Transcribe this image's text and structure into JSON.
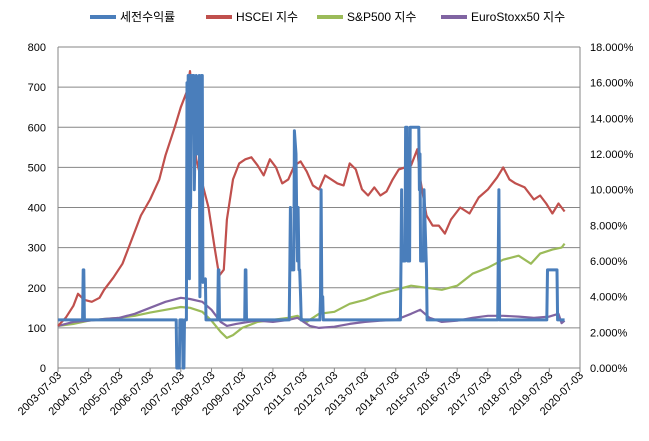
{
  "chart_data": {
    "type": "line",
    "legend_position": "top",
    "grid": "horizontal",
    "x_ticks": [
      "2003-07-03",
      "2004-07-03",
      "2005-07-03",
      "2006-07-03",
      "2007-07-03",
      "2008-07-03",
      "2009-07-03",
      "2010-07-03",
      "2011-07-03",
      "2012-07-03",
      "2013-07-03",
      "2014-07-03",
      "2015-07-03",
      "2016-07-03",
      "2017-07-03",
      "2018-07-03",
      "2019-07-03",
      "2020-07-03"
    ],
    "y_left": {
      "min": 0,
      "max": 800,
      "ticks": [
        "0",
        "100",
        "200",
        "300",
        "400",
        "500",
        "600",
        "700",
        "800"
      ]
    },
    "y_right": {
      "min": 0,
      "max": 0.18,
      "ticks": [
        "0.000%",
        "2.000%",
        "4.000%",
        "6.000%",
        "8.000%",
        "10.000%",
        "12.000%",
        "14.000%",
        "16.000%",
        "18.000%"
      ]
    },
    "series": [
      {
        "name": "세전수익률",
        "color": "#4a7ebb",
        "axis": "right",
        "x": [
          2003.5,
          2004.3,
          2004.32,
          2004.34,
          2004.36,
          2007.35,
          2007.37,
          2007.45,
          2007.47,
          2007.55,
          2007.57,
          2007.6,
          2007.62,
          2007.68,
          2007.7,
          2007.72,
          2007.74,
          2007.78,
          2007.8,
          2007.82,
          2007.84,
          2007.86,
          2007.88,
          2007.92,
          2007.94,
          2008.0,
          2008.02,
          2008.1,
          2008.12,
          2008.15,
          2008.17,
          2008.2,
          2008.22,
          2008.3,
          2008.32,
          2008.7,
          2008.72,
          2008.74,
          2008.76,
          2009.58,
          2009.6,
          2009.62,
          2009.64,
          2011.03,
          2011.05,
          2011.07,
          2011.09,
          2011.18,
          2011.2,
          2011.25,
          2011.27,
          2011.3,
          2011.32,
          2011.35,
          2011.37,
          2011.4,
          2011.42,
          2012.03,
          2012.05,
          2012.07,
          2012.09,
          2012.12,
          2012.14,
          2014.65,
          2014.67,
          2014.69,
          2014.71,
          2014.8,
          2014.82,
          2014.87,
          2014.89,
          2014.95,
          2014.97,
          2015.1,
          2015.12,
          2015.25,
          2015.27,
          2015.29,
          2015.31,
          2015.4,
          2015.42,
          2015.5,
          2015.52,
          2017.82,
          2017.84,
          2017.86,
          2017.88,
          2019.42,
          2019.44,
          2019.46,
          2019.48,
          2019.7,
          2019.72,
          2019.75,
          2019.77,
          2020.0
        ],
        "y": [
          0.027,
          0.027,
          0.055,
          0.055,
          0.027,
          0.027,
          0,
          0,
          0.027,
          0.027,
          0,
          0,
          0.027,
          0.027,
          0.16,
          0.13,
          0.164,
          0.05,
          0.164,
          0.09,
          0.164,
          0.14,
          0.164,
          0.164,
          0.1,
          0.164,
          0.12,
          0.164,
          0.04,
          0.08,
          0.164,
          0.164,
          0.048,
          0.05,
          0.027,
          0.027,
          0.055,
          0.055,
          0.027,
          0.027,
          0.055,
          0.055,
          0.027,
          0.027,
          0.055,
          0.09,
          0.055,
          0.055,
          0.133,
          0.12,
          0.09,
          0.06,
          0.09,
          0.055,
          0.055,
          0.04,
          0.027,
          0.027,
          0.04,
          0.1,
          0.04,
          0.04,
          0.027,
          0.027,
          0.06,
          0.1,
          0.06,
          0.06,
          0.135,
          0.135,
          0.06,
          0.06,
          0.135,
          0.135,
          0.135,
          0.135,
          0.1,
          0.12,
          0.06,
          0.06,
          0.1,
          0.055,
          0.027,
          0.027,
          0.065,
          0.1,
          0.027,
          0.027,
          0.055,
          0.055,
          0.055,
          0.055,
          0.055,
          0.055,
          0.027,
          0.027
        ]
      },
      {
        "name": "HSCEI 지수",
        "color": "#c0504d",
        "axis": "left",
        "x": [
          2003.5,
          2003.75,
          2004.0,
          2004.15,
          2004.35,
          2004.6,
          2004.85,
          2005.0,
          2005.3,
          2005.6,
          2005.9,
          2006.2,
          2006.5,
          2006.8,
          2007.0,
          2007.3,
          2007.5,
          2007.7,
          2007.8,
          2007.85,
          2007.9,
          2008.0,
          2008.2,
          2008.4,
          2008.6,
          2008.75,
          2008.9,
          2009.0,
          2009.2,
          2009.4,
          2009.6,
          2009.8,
          2010.0,
          2010.2,
          2010.4,
          2010.6,
          2010.8,
          2011.0,
          2011.2,
          2011.4,
          2011.6,
          2011.8,
          2012.0,
          2012.2,
          2012.4,
          2012.6,
          2012.8,
          2013.0,
          2013.2,
          2013.4,
          2013.6,
          2013.8,
          2014.0,
          2014.2,
          2014.4,
          2014.6,
          2014.8,
          2015.0,
          2015.2,
          2015.3,
          2015.5,
          2015.7,
          2015.9,
          2016.1,
          2016.3,
          2016.6,
          2016.9,
          2017.2,
          2017.5,
          2017.8,
          2018.0,
          2018.2,
          2018.4,
          2018.7,
          2019.0,
          2019.2,
          2019.4,
          2019.6,
          2019.8,
          2020.0
        ],
        "y": [
          105,
          125,
          155,
          185,
          170,
          165,
          175,
          195,
          225,
          260,
          320,
          380,
          420,
          470,
          530,
          600,
          650,
          690,
          740,
          700,
          610,
          520,
          460,
          400,
          300,
          230,
          245,
          370,
          470,
          510,
          520,
          525,
          505,
          480,
          520,
          500,
          460,
          470,
          505,
          515,
          490,
          455,
          445,
          480,
          470,
          460,
          455,
          510,
          495,
          445,
          430,
          450,
          430,
          440,
          470,
          495,
          500,
          505,
          545,
          470,
          380,
          355,
          355,
          335,
          370,
          400,
          385,
          425,
          445,
          475,
          500,
          470,
          460,
          450,
          420,
          430,
          410,
          385,
          410,
          390
        ]
      },
      {
        "name": "S&P500 지수",
        "color": "#9bbb59",
        "axis": "left",
        "x": [
          2003.5,
          2004.0,
          2004.5,
          2005.0,
          2005.5,
          2006.0,
          2006.5,
          2007.0,
          2007.5,
          2007.8,
          2008.2,
          2008.5,
          2008.8,
          2009.0,
          2009.2,
          2009.5,
          2010.0,
          2010.5,
          2011.0,
          2011.3,
          2011.6,
          2012.0,
          2012.5,
          2013.0,
          2013.5,
          2014.0,
          2014.5,
          2015.0,
          2015.5,
          2016.0,
          2016.5,
          2017.0,
          2017.5,
          2018.0,
          2018.5,
          2018.9,
          2019.2,
          2019.6,
          2019.9,
          2020.0
        ],
        "y": [
          105,
          110,
          118,
          122,
          125,
          130,
          138,
          145,
          152,
          150,
          140,
          118,
          90,
          75,
          82,
          100,
          115,
          120,
          125,
          130,
          115,
          135,
          140,
          160,
          170,
          185,
          195,
          205,
          200,
          195,
          205,
          235,
          250,
          270,
          280,
          260,
          285,
          295,
          300,
          310
        ]
      },
      {
        "name": "EuroStoxx50 지수",
        "color": "#8064a2",
        "axis": "left",
        "x": [
          2003.5,
          2004.0,
          2004.5,
          2005.0,
          2005.5,
          2006.0,
          2006.5,
          2007.0,
          2007.5,
          2007.8,
          2008.2,
          2008.5,
          2008.8,
          2009.0,
          2009.3,
          2009.7,
          2010.0,
          2010.5,
          2011.0,
          2011.3,
          2011.7,
          2012.0,
          2012.5,
          2013.0,
          2013.5,
          2014.0,
          2014.5,
          2015.0,
          2015.3,
          2015.6,
          2016.0,
          2016.5,
          2017.0,
          2017.5,
          2018.0,
          2018.5,
          2019.0,
          2019.5,
          2019.8,
          2019.9,
          2020.0
        ],
        "y": [
          105,
          115,
          118,
          122,
          125,
          135,
          150,
          165,
          175,
          172,
          165,
          145,
          115,
          105,
          110,
          115,
          118,
          115,
          120,
          125,
          105,
          100,
          103,
          110,
          115,
          118,
          120,
          135,
          145,
          125,
          115,
          118,
          125,
          130,
          130,
          128,
          125,
          128,
          135,
          112,
          118
        ]
      }
    ]
  }
}
